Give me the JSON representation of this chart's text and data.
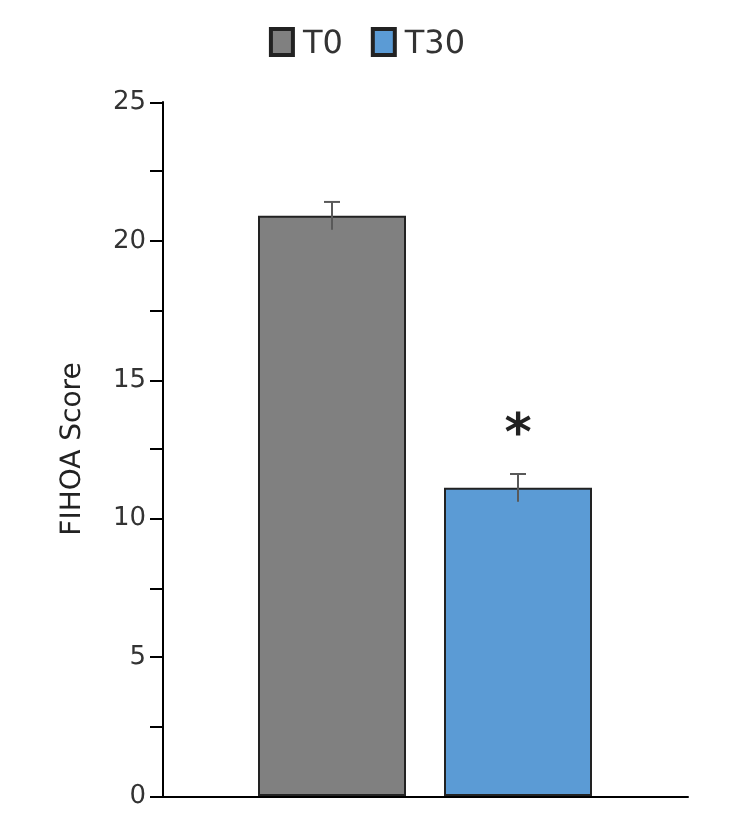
{
  "chart_data": {
    "type": "bar",
    "ylabel": "FIHOA Score",
    "categories": [
      null
    ],
    "series": [
      {
        "name": "T0",
        "color": "#808080",
        "values": [
          20.9
        ],
        "errors": [
          0.5
        ]
      },
      {
        "name": "T30",
        "color": "#5b9bd5",
        "values": [
          11.1
        ],
        "errors": [
          0.5
        ]
      }
    ],
    "ylim": [
      0,
      25
    ],
    "yticks": [
      0,
      {
        "value": 2.5,
        "label": null
      },
      5,
      {
        "value": 7.5,
        "label": null
      },
      10,
      {
        "value": 12.5,
        "label": null
      },
      15,
      {
        "value": 17.5,
        "label": null
      },
      20,
      {
        "value": 22.5,
        "label": null
      },
      25
    ],
    "annotations": [
      "*"
    ],
    "grid": false,
    "legend": "top"
  }
}
